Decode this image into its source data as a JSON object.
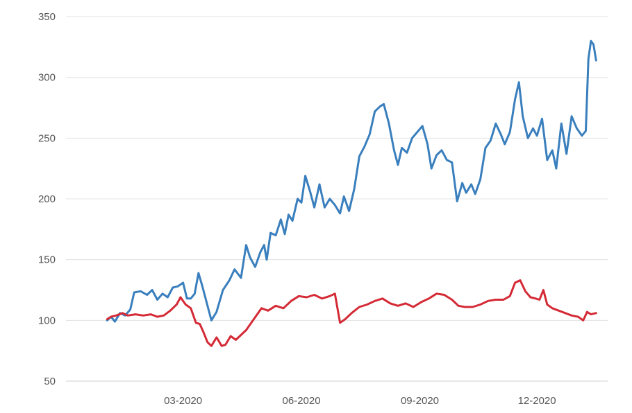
{
  "chart_data": {
    "type": "line",
    "title": "",
    "xlabel": "",
    "ylabel": "",
    "ylim": [
      50,
      350
    ],
    "yticks": [
      50,
      100,
      150,
      200,
      250,
      300,
      350
    ],
    "x_ticks": [
      {
        "label": "03-2020",
        "date": "2020-03-01"
      },
      {
        "label": "06-2020",
        "date": "2020-06-01"
      },
      {
        "label": "09-2020",
        "date": "2020-09-01"
      },
      {
        "label": "12-2020",
        "date": "2020-12-01"
      }
    ],
    "x_range": [
      "2019-12-01",
      "2021-01-25"
    ],
    "grid": "horizontal",
    "legend": "none",
    "series": [
      {
        "color": "#3a7fbd",
        "points": [
          [
            "2020-01-02",
            100
          ],
          [
            "2020-01-05",
            103
          ],
          [
            "2020-01-08",
            99
          ],
          [
            "2020-01-12",
            106
          ],
          [
            "2020-01-16",
            104
          ],
          [
            "2020-01-20",
            109
          ],
          [
            "2020-01-23",
            123
          ],
          [
            "2020-01-28",
            124
          ],
          [
            "2020-02-02",
            121
          ],
          [
            "2020-02-06",
            125
          ],
          [
            "2020-02-10",
            117
          ],
          [
            "2020-02-14",
            122
          ],
          [
            "2020-02-18",
            119
          ],
          [
            "2020-02-22",
            127
          ],
          [
            "2020-02-26",
            128
          ],
          [
            "2020-03-01",
            131
          ],
          [
            "2020-03-04",
            118
          ],
          [
            "2020-03-07",
            118
          ],
          [
            "2020-03-10",
            122
          ],
          [
            "2020-03-13",
            139
          ],
          [
            "2020-03-16",
            128
          ],
          [
            "2020-03-20",
            112
          ],
          [
            "2020-03-23",
            100
          ],
          [
            "2020-03-27",
            107
          ],
          [
            "2020-04-01",
            125
          ],
          [
            "2020-04-06",
            133
          ],
          [
            "2020-04-10",
            142
          ],
          [
            "2020-04-15",
            135
          ],
          [
            "2020-04-19",
            162
          ],
          [
            "2020-04-22",
            152
          ],
          [
            "2020-04-26",
            144
          ],
          [
            "2020-04-30",
            156
          ],
          [
            "2020-05-03",
            162
          ],
          [
            "2020-05-05",
            150
          ],
          [
            "2020-05-08",
            172
          ],
          [
            "2020-05-12",
            170
          ],
          [
            "2020-05-16",
            183
          ],
          [
            "2020-05-19",
            171
          ],
          [
            "2020-05-22",
            187
          ],
          [
            "2020-05-25",
            182
          ],
          [
            "2020-05-29",
            200
          ],
          [
            "2020-06-01",
            197
          ],
          [
            "2020-06-04",
            219
          ],
          [
            "2020-06-08",
            205
          ],
          [
            "2020-06-11",
            193
          ],
          [
            "2020-06-15",
            212
          ],
          [
            "2020-06-19",
            193
          ],
          [
            "2020-06-23",
            200
          ],
          [
            "2020-06-27",
            195
          ],
          [
            "2020-07-01",
            188
          ],
          [
            "2020-07-04",
            202
          ],
          [
            "2020-07-08",
            190
          ],
          [
            "2020-07-12",
            208
          ],
          [
            "2020-07-16",
            235
          ],
          [
            "2020-07-20",
            243
          ],
          [
            "2020-07-24",
            253
          ],
          [
            "2020-07-28",
            272
          ],
          [
            "2020-08-01",
            276
          ],
          [
            "2020-08-04",
            278
          ],
          [
            "2020-08-08",
            262
          ],
          [
            "2020-08-12",
            240
          ],
          [
            "2020-08-15",
            228
          ],
          [
            "2020-08-18",
            242
          ],
          [
            "2020-08-22",
            238
          ],
          [
            "2020-08-26",
            250
          ],
          [
            "2020-08-30",
            255
          ],
          [
            "2020-09-03",
            260
          ],
          [
            "2020-09-07",
            245
          ],
          [
            "2020-09-10",
            225
          ],
          [
            "2020-09-14",
            236
          ],
          [
            "2020-09-18",
            240
          ],
          [
            "2020-09-22",
            232
          ],
          [
            "2020-09-26",
            230
          ],
          [
            "2020-09-30",
            198
          ],
          [
            "2020-10-04",
            213
          ],
          [
            "2020-10-07",
            205
          ],
          [
            "2020-10-11",
            212
          ],
          [
            "2020-10-14",
            204
          ],
          [
            "2020-10-18",
            216
          ],
          [
            "2020-10-22",
            242
          ],
          [
            "2020-10-26",
            248
          ],
          [
            "2020-10-30",
            262
          ],
          [
            "2020-11-03",
            253
          ],
          [
            "2020-11-06",
            245
          ],
          [
            "2020-11-10",
            255
          ],
          [
            "2020-11-14",
            282
          ],
          [
            "2020-11-17",
            296
          ],
          [
            "2020-11-20",
            268
          ],
          [
            "2020-11-24",
            250
          ],
          [
            "2020-11-28",
            258
          ],
          [
            "2020-12-01",
            252
          ],
          [
            "2020-12-05",
            266
          ],
          [
            "2020-12-09",
            232
          ],
          [
            "2020-12-13",
            240
          ],
          [
            "2020-12-16",
            225
          ],
          [
            "2020-12-20",
            262
          ],
          [
            "2020-12-24",
            237
          ],
          [
            "2020-12-28",
            268
          ],
          [
            "2021-01-01",
            258
          ],
          [
            "2021-01-05",
            252
          ],
          [
            "2021-01-08",
            256
          ],
          [
            "2021-01-10",
            315
          ],
          [
            "2021-01-12",
            330
          ],
          [
            "2021-01-14",
            327
          ],
          [
            "2021-01-16",
            314
          ]
        ]
      },
      {
        "color": "#d42a35",
        "points": [
          [
            "2020-01-02",
            101
          ],
          [
            "2020-01-05",
            103
          ],
          [
            "2020-01-09",
            104
          ],
          [
            "2020-01-14",
            106
          ],
          [
            "2020-01-18",
            104
          ],
          [
            "2020-01-24",
            105
          ],
          [
            "2020-01-30",
            104
          ],
          [
            "2020-02-05",
            105
          ],
          [
            "2020-02-10",
            103
          ],
          [
            "2020-02-15",
            104
          ],
          [
            "2020-02-20",
            108
          ],
          [
            "2020-02-25",
            113
          ],
          [
            "2020-02-28",
            119
          ],
          [
            "2020-03-03",
            113
          ],
          [
            "2020-03-07",
            110
          ],
          [
            "2020-03-11",
            98
          ],
          [
            "2020-03-14",
            97
          ],
          [
            "2020-03-17",
            90
          ],
          [
            "2020-03-20",
            82
          ],
          [
            "2020-03-23",
            79
          ],
          [
            "2020-03-27",
            86
          ],
          [
            "2020-03-31",
            79
          ],
          [
            "2020-04-03",
            80
          ],
          [
            "2020-04-07",
            87
          ],
          [
            "2020-04-11",
            84
          ],
          [
            "2020-04-15",
            88
          ],
          [
            "2020-04-19",
            92
          ],
          [
            "2020-04-23",
            98
          ],
          [
            "2020-04-27",
            104
          ],
          [
            "2020-05-01",
            110
          ],
          [
            "2020-05-06",
            108
          ],
          [
            "2020-05-12",
            112
          ],
          [
            "2020-05-18",
            110
          ],
          [
            "2020-05-24",
            116
          ],
          [
            "2020-05-30",
            120
          ],
          [
            "2020-06-05",
            119
          ],
          [
            "2020-06-11",
            121
          ],
          [
            "2020-06-17",
            118
          ],
          [
            "2020-06-23",
            120
          ],
          [
            "2020-06-27",
            122
          ],
          [
            "2020-07-01",
            98
          ],
          [
            "2020-07-05",
            101
          ],
          [
            "2020-07-10",
            106
          ],
          [
            "2020-07-16",
            111
          ],
          [
            "2020-07-22",
            113
          ],
          [
            "2020-07-28",
            116
          ],
          [
            "2020-08-03",
            118
          ],
          [
            "2020-08-09",
            114
          ],
          [
            "2020-08-15",
            112
          ],
          [
            "2020-08-21",
            114
          ],
          [
            "2020-08-27",
            111
          ],
          [
            "2020-09-02",
            115
          ],
          [
            "2020-09-08",
            118
          ],
          [
            "2020-09-14",
            122
          ],
          [
            "2020-09-20",
            121
          ],
          [
            "2020-09-26",
            117
          ],
          [
            "2020-10-01",
            112
          ],
          [
            "2020-10-06",
            111
          ],
          [
            "2020-10-12",
            111
          ],
          [
            "2020-10-18",
            113
          ],
          [
            "2020-10-24",
            116
          ],
          [
            "2020-10-30",
            117
          ],
          [
            "2020-11-05",
            117
          ],
          [
            "2020-11-10",
            120
          ],
          [
            "2020-11-14",
            131
          ],
          [
            "2020-11-18",
            133
          ],
          [
            "2020-11-22",
            124
          ],
          [
            "2020-11-26",
            119
          ],
          [
            "2020-11-30",
            118
          ],
          [
            "2020-12-03",
            117
          ],
          [
            "2020-12-06",
            125
          ],
          [
            "2020-12-09",
            113
          ],
          [
            "2020-12-13",
            110
          ],
          [
            "2020-12-18",
            108
          ],
          [
            "2020-12-23",
            106
          ],
          [
            "2020-12-28",
            104
          ],
          [
            "2021-01-02",
            103
          ],
          [
            "2021-01-06",
            100
          ],
          [
            "2021-01-09",
            107
          ],
          [
            "2021-01-12",
            105
          ],
          [
            "2021-01-16",
            106
          ]
        ]
      }
    ]
  }
}
